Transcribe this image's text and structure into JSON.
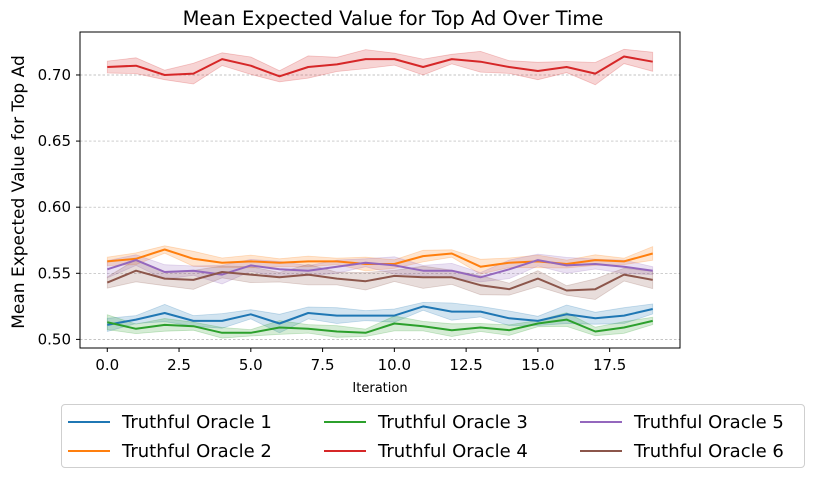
{
  "chart_data": {
    "type": "line",
    "title": "Mean Expected Value for Top Ad Over Time",
    "xlabel": "Iteration",
    "ylabel": "Mean Expected Value for Top Ad",
    "xlim": [
      -0.95,
      19.95
    ],
    "ylim": [
      0.4935,
      0.7325
    ],
    "xticks": [
      0.0,
      2.5,
      5.0,
      7.5,
      10.0,
      12.5,
      15.0,
      17.5
    ],
    "xtick_labels": [
      "0.0",
      "2.5",
      "5.0",
      "7.5",
      "10.0",
      "12.5",
      "15.0",
      "17.5"
    ],
    "yticks": [
      0.5,
      0.55,
      0.6,
      0.65,
      0.7
    ],
    "ytick_labels": [
      "0.50",
      "0.55",
      "0.60",
      "0.65",
      "0.70"
    ],
    "grid": "y-dashed",
    "legend_placement": "bottom-center, 3 columns",
    "x": [
      0,
      1,
      2,
      3,
      4,
      5,
      6,
      7,
      8,
      9,
      10,
      11,
      12,
      13,
      14,
      15,
      16,
      17,
      18,
      19
    ],
    "series": [
      {
        "name": "Truthful Oracle 1",
        "color": "#1f77b4",
        "values": [
          0.511,
          0.515,
          0.52,
          0.514,
          0.514,
          0.519,
          0.512,
          0.52,
          0.518,
          0.518,
          0.518,
          0.525,
          0.521,
          0.521,
          0.516,
          0.514,
          0.519,
          0.516,
          0.518,
          0.523
        ],
        "band": 0.005
      },
      {
        "name": "Truthful Oracle 2",
        "color": "#ff7f0e",
        "values": [
          0.559,
          0.561,
          0.568,
          0.561,
          0.558,
          0.559,
          0.558,
          0.559,
          0.559,
          0.557,
          0.557,
          0.563,
          0.565,
          0.555,
          0.558,
          0.559,
          0.557,
          0.56,
          0.559,
          0.565
        ],
        "band": 0.004
      },
      {
        "name": "Truthful Oracle 3",
        "color": "#2ca02c",
        "values": [
          0.513,
          0.508,
          0.511,
          0.51,
          0.505,
          0.505,
          0.509,
          0.508,
          0.506,
          0.505,
          0.512,
          0.51,
          0.507,
          0.509,
          0.507,
          0.512,
          0.515,
          0.506,
          0.509,
          0.514
        ],
        "band": 0.004
      },
      {
        "name": "Truthful Oracle 4",
        "color": "#d62728",
        "values": [
          0.706,
          0.707,
          0.7,
          0.701,
          0.712,
          0.707,
          0.699,
          0.706,
          0.708,
          0.712,
          0.712,
          0.706,
          0.712,
          0.71,
          0.706,
          0.703,
          0.706,
          0.701,
          0.714,
          0.71
        ],
        "band": 0.006
      },
      {
        "name": "Truthful Oracle 5",
        "color": "#9467bd",
        "values": [
          0.553,
          0.56,
          0.551,
          0.552,
          0.549,
          0.556,
          0.553,
          0.552,
          0.555,
          0.558,
          0.556,
          0.552,
          0.552,
          0.547,
          0.553,
          0.56,
          0.556,
          0.557,
          0.555,
          0.552
        ],
        "band": 0.005
      },
      {
        "name": "Truthful Oracle 6",
        "color": "#8c564b",
        "values": [
          0.543,
          0.552,
          0.546,
          0.545,
          0.551,
          0.549,
          0.547,
          0.549,
          0.546,
          0.544,
          0.548,
          0.547,
          0.547,
          0.541,
          0.538,
          0.546,
          0.537,
          0.538,
          0.549,
          0.545
        ],
        "band": 0.006
      }
    ]
  }
}
